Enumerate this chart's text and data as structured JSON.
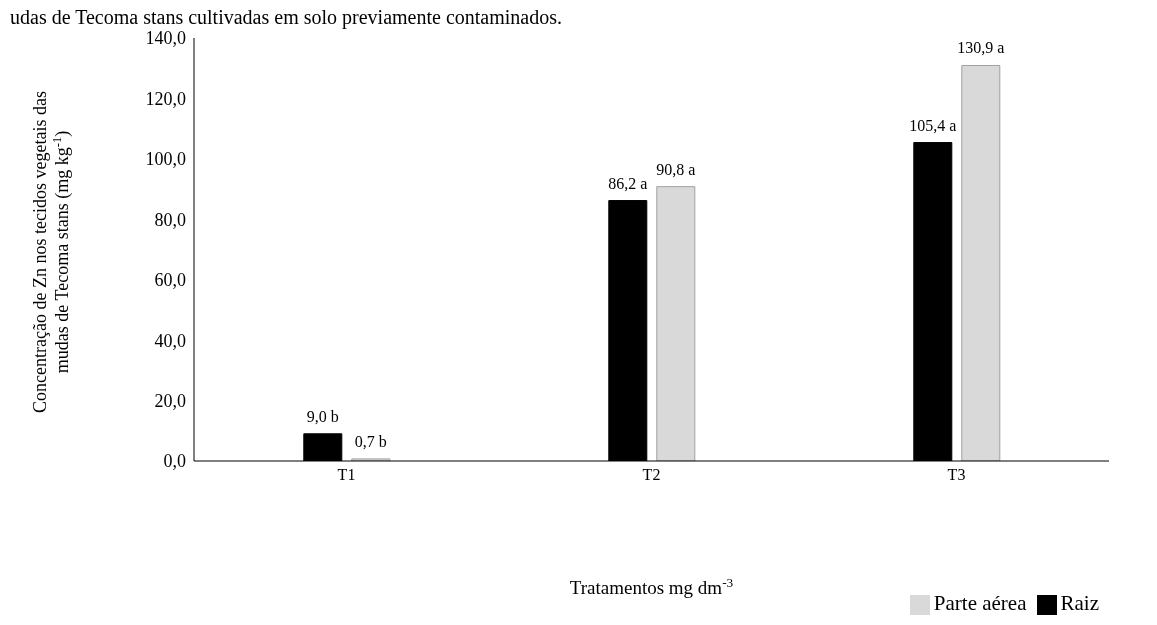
{
  "chart_data": {
    "type": "bar",
    "annotations": [
      "udas de Tecoma stans cultivadas em solo previamente contaminados."
    ],
    "ylabel": "Concentração de Zn nos tecidos vegetais das mudas de Tecoma stans (mg kg$^{-1}$)",
    "xlabel": "Tratamentos mg dm$^{-3}$",
    "categories": [
      "T1",
      "T2",
      "T3"
    ],
    "series": [
      {
        "name": "Raiz",
        "color": "#000000",
        "values": [
          9.0,
          86.2,
          105.4
        ],
        "value_labels": [
          "9,0 b",
          "86,2 a",
          "105,4 a"
        ]
      },
      {
        "name": "Parte aérea",
        "color": "#d9d9d9",
        "values": [
          0.7,
          90.8,
          130.9
        ],
        "value_labels": [
          "0,7 b",
          "90,8 a",
          "130,9 a"
        ]
      }
    ],
    "ylim": [
      0,
      140
    ],
    "yticks": [
      {
        "value": 0,
        "label": "0,0"
      },
      {
        "value": 20,
        "label": "20,0"
      },
      {
        "value": 40,
        "label": "40,0"
      },
      {
        "value": 60,
        "label": "60,0"
      },
      {
        "value": 80,
        "label": "80,0"
      },
      {
        "value": 100,
        "label": "100,0"
      },
      {
        "value": 120,
        "label": "120,0"
      },
      {
        "value": 140,
        "label": "140,0"
      }
    ],
    "grid": false,
    "legend": "bottom right"
  }
}
